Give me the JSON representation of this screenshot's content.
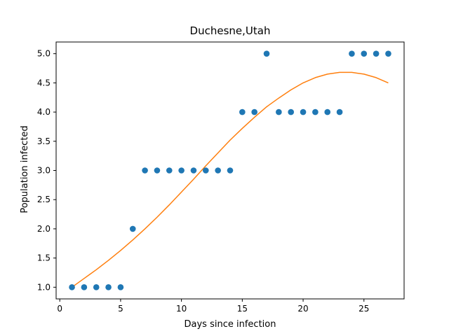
{
  "chart_data": {
    "type": "scatter",
    "title": "Duchesne,Utah",
    "xlabel": "Days since infection",
    "ylabel": "Population infected",
    "xlim": [
      -0.3,
      28.3
    ],
    "ylim": [
      0.8,
      5.2
    ],
    "xticks": [
      0,
      5,
      10,
      15,
      20,
      25
    ],
    "yticks": [
      1.0,
      1.5,
      2.0,
      2.5,
      3.0,
      3.5,
      4.0,
      4.5,
      5.0
    ],
    "ytick_labels": [
      "1.0",
      "1.5",
      "2.0",
      "2.5",
      "3.0",
      "3.5",
      "4.0",
      "4.5",
      "5.0"
    ],
    "grid": false,
    "series": [
      {
        "kind": "scatter",
        "color": "#1f77b4",
        "x": [
          1,
          2,
          3,
          4,
          5,
          6,
          7,
          8,
          9,
          10,
          11,
          12,
          13,
          14,
          15,
          16,
          17,
          18,
          19,
          20,
          21,
          22,
          23,
          24,
          25,
          26,
          27
        ],
        "y": [
          1,
          1,
          1,
          1,
          1,
          2,
          3,
          3,
          3,
          3,
          3,
          3,
          3,
          3,
          4,
          4,
          5,
          4,
          4,
          4,
          4,
          4,
          4,
          5,
          5,
          5,
          5
        ]
      },
      {
        "kind": "line",
        "color": "#ff7f0e",
        "x": [
          1,
          2,
          3,
          4,
          5,
          6,
          7,
          8,
          9,
          10,
          11,
          12,
          13,
          14,
          15,
          16,
          17,
          18,
          19,
          20,
          21,
          22,
          23,
          24,
          25,
          26,
          27
        ],
        "y": [
          1.0,
          1.15,
          1.3,
          1.46,
          1.63,
          1.81,
          2.0,
          2.2,
          2.41,
          2.63,
          2.85,
          3.08,
          3.3,
          3.52,
          3.72,
          3.91,
          4.09,
          4.24,
          4.38,
          4.5,
          4.59,
          4.65,
          4.68,
          4.68,
          4.65,
          4.59,
          4.5
        ]
      }
    ]
  }
}
